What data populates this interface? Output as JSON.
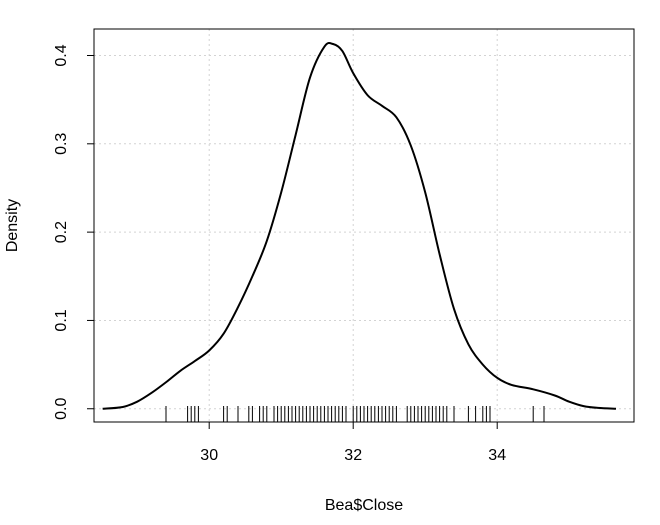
{
  "chart_data": {
    "type": "line",
    "title": "",
    "xlabel": "Bea$Close",
    "ylabel": "Density",
    "xlim": [
      28.4,
      35.9
    ],
    "ylim": [
      -0.015,
      0.43
    ],
    "x_ticks": [
      30,
      32,
      34
    ],
    "x_tick_labels": [
      "30",
      "32",
      "34"
    ],
    "y_ticks": [
      0.0,
      0.1,
      0.2,
      0.3,
      0.4
    ],
    "y_tick_labels": [
      "0.0",
      "0.1",
      "0.2",
      "0.3",
      "0.4"
    ],
    "grid": true,
    "series": [
      {
        "x": [
          28.52,
          28.8,
          29.0,
          29.2,
          29.4,
          29.6,
          29.8,
          30.0,
          30.2,
          30.4,
          30.6,
          30.8,
          31.0,
          31.2,
          31.4,
          31.6,
          31.72,
          31.85,
          32.0,
          32.2,
          32.4,
          32.6,
          32.8,
          33.0,
          33.2,
          33.4,
          33.6,
          33.8,
          34.0,
          34.2,
          34.5,
          34.8,
          35.0,
          35.2,
          35.4,
          35.65
        ],
        "y": [
          0.0,
          0.002,
          0.008,
          0.018,
          0.03,
          0.043,
          0.054,
          0.066,
          0.085,
          0.115,
          0.15,
          0.19,
          0.245,
          0.31,
          0.375,
          0.41,
          0.413,
          0.405,
          0.38,
          0.355,
          0.343,
          0.33,
          0.298,
          0.245,
          0.175,
          0.113,
          0.073,
          0.05,
          0.035,
          0.027,
          0.022,
          0.015,
          0.008,
          0.003,
          0.001,
          0.0
        ]
      }
    ],
    "rug": [
      29.4,
      29.7,
      29.75,
      29.8,
      29.85,
      30.2,
      30.25,
      30.4,
      30.55,
      30.6,
      30.7,
      30.75,
      30.8,
      30.9,
      30.95,
      31.0,
      31.05,
      31.1,
      31.15,
      31.2,
      31.25,
      31.3,
      31.35,
      31.4,
      31.45,
      31.5,
      31.55,
      31.6,
      31.65,
      31.7,
      31.75,
      31.8,
      31.85,
      31.9,
      32.0,
      32.05,
      32.1,
      32.15,
      32.2,
      32.25,
      32.3,
      32.35,
      32.4,
      32.45,
      32.5,
      32.55,
      32.6,
      32.75,
      32.8,
      32.85,
      32.9,
      32.95,
      33.0,
      33.05,
      33.1,
      33.15,
      33.2,
      33.25,
      33.3,
      33.4,
      33.6,
      33.7,
      33.8,
      33.85,
      33.9,
      34.5,
      34.65
    ]
  }
}
